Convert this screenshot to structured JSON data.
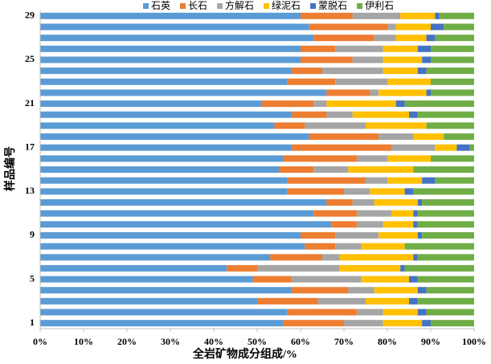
{
  "chart_data": {
    "type": "stacked_bar_horizontal",
    "ylabel": "样品编号",
    "xlabel": "全岩矿物成分组成/%",
    "categories": [
      "1",
      null,
      null,
      null,
      "5",
      null,
      null,
      null,
      "9",
      null,
      null,
      null,
      "13",
      null,
      null,
      null,
      "17",
      null,
      null,
      null,
      "21",
      null,
      null,
      null,
      "25",
      null,
      null,
      null,
      "29"
    ],
    "series": [
      {
        "name": "石英",
        "color": "#5b9bd5",
        "values": [
          56,
          57,
          50,
          58,
          49,
          43,
          53,
          61,
          60,
          67,
          63,
          66,
          57,
          57,
          55,
          56,
          58,
          62,
          54,
          58,
          51,
          66,
          57,
          58,
          60,
          60,
          63,
          62,
          60
        ]
      },
      {
        "name": "长石",
        "color": "#ed7d31",
        "values": [
          14,
          16,
          14,
          13,
          9,
          7,
          12,
          7,
          8,
          6,
          10,
          6,
          13,
          18,
          8,
          17,
          23,
          16,
          7,
          8,
          12,
          10,
          11,
          7,
          12,
          8,
          14,
          18,
          12
        ]
      },
      {
        "name": "方解石",
        "color": "#a5a5a5",
        "values": [
          9,
          6,
          11,
          6,
          16,
          19,
          4,
          6,
          10,
          6,
          8,
          5,
          6,
          5,
          8,
          7,
          10,
          8,
          14,
          6,
          3,
          2,
          12,
          14,
          7,
          11,
          5,
          2,
          11
        ]
      },
      {
        "name": "绿泥石",
        "color": "#ffc000",
        "values": [
          9,
          8,
          10,
          10,
          11,
          14,
          17,
          10,
          9,
          7,
          5,
          10,
          8,
          8,
          15,
          10,
          5,
          7,
          14,
          13,
          16,
          11,
          10,
          8,
          9,
          8,
          7,
          8,
          8
        ]
      },
      {
        "name": "蒙脱石",
        "color": "#4472c4",
        "values": [
          2,
          2,
          2,
          2,
          2,
          1,
          1,
          0,
          1,
          1,
          1,
          1,
          2,
          3,
          0,
          0,
          3,
          0,
          0,
          2,
          2,
          1,
          0,
          2,
          2,
          3,
          2,
          3,
          1
        ]
      },
      {
        "name": "伊利石",
        "color": "#70ad47",
        "values": [
          10,
          11,
          13,
          11,
          13,
          16,
          13,
          16,
          12,
          13,
          13,
          12,
          14,
          9,
          14,
          10,
          1,
          7,
          11,
          13,
          16,
          10,
          10,
          11,
          10,
          10,
          9,
          7,
          8
        ]
      }
    ],
    "xlim": [
      0,
      100
    ],
    "xticks": [
      {
        "value": 0,
        "label": "0%"
      },
      {
        "value": 10,
        "label": "10%"
      },
      {
        "value": 20,
        "label": "20%"
      },
      {
        "value": 30,
        "label": "30%"
      },
      {
        "value": 40,
        "label": "40%"
      },
      {
        "value": 50,
        "label": "50%"
      },
      {
        "value": 60,
        "label": "60%"
      },
      {
        "value": 70,
        "label": "70%"
      },
      {
        "value": 80,
        "label": "80%"
      },
      {
        "value": 90,
        "label": "90%"
      },
      {
        "value": 100,
        "label": "100%"
      }
    ],
    "legend": "top"
  }
}
